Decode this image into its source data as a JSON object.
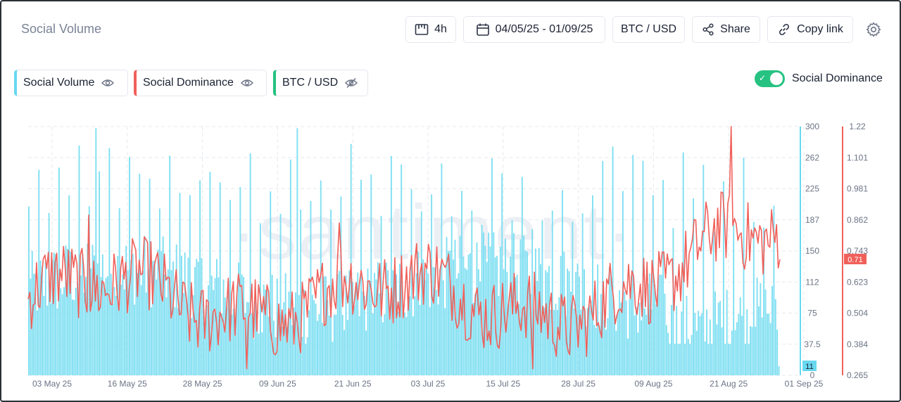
{
  "header": {
    "title": "Social Volume"
  },
  "toolbar": {
    "interval_label": "4h",
    "date_range_label": "04/05/25 - 01/09/25",
    "pair_label": "BTC / USD",
    "share_label": "Share",
    "copy_link_label": "Copy link"
  },
  "metrics": [
    {
      "label": "Social Volume",
      "color": "#68d8f0",
      "visible": true
    },
    {
      "label": "Social Dominance",
      "color": "#f0605a",
      "visible": true
    },
    {
      "label": "BTC / USD",
      "color": "#26c281",
      "visible": false
    }
  ],
  "toggle": {
    "label": "Social Dominance",
    "on": true
  },
  "watermark": "·santiment·",
  "chart_data": {
    "type": "bar+line",
    "x_ticks": [
      "03 May 25",
      "16 May 25",
      "28 May 25",
      "09 Jun 25",
      "21 Jun 25",
      "03 Jul 25",
      "15 Jul 25",
      "28 Jul 25",
      "09 Aug 25",
      "21 Aug 25",
      "01 Sep 25"
    ],
    "y_left": {
      "ticks": [
        "0",
        "37.5",
        "75",
        "112",
        "150",
        "187",
        "225",
        "262",
        "300"
      ],
      "min": 0,
      "max": 300
    },
    "y_right": {
      "ticks": [
        "0.265",
        "0.384",
        "0.504",
        "0.623",
        "0.743",
        "0.862",
        "0.981",
        "1.101",
        "1.22"
      ],
      "min": 0.265,
      "max": 1.22
    },
    "current_labels": {
      "left": "11",
      "right": "0.71"
    },
    "grid": true,
    "series": [
      {
        "name": "Social Volume",
        "type": "bar",
        "color": "#68d8f0",
        "axis": "left"
      },
      {
        "name": "Social Dominance",
        "type": "line",
        "color": "#f0605a",
        "axis": "right"
      }
    ]
  }
}
